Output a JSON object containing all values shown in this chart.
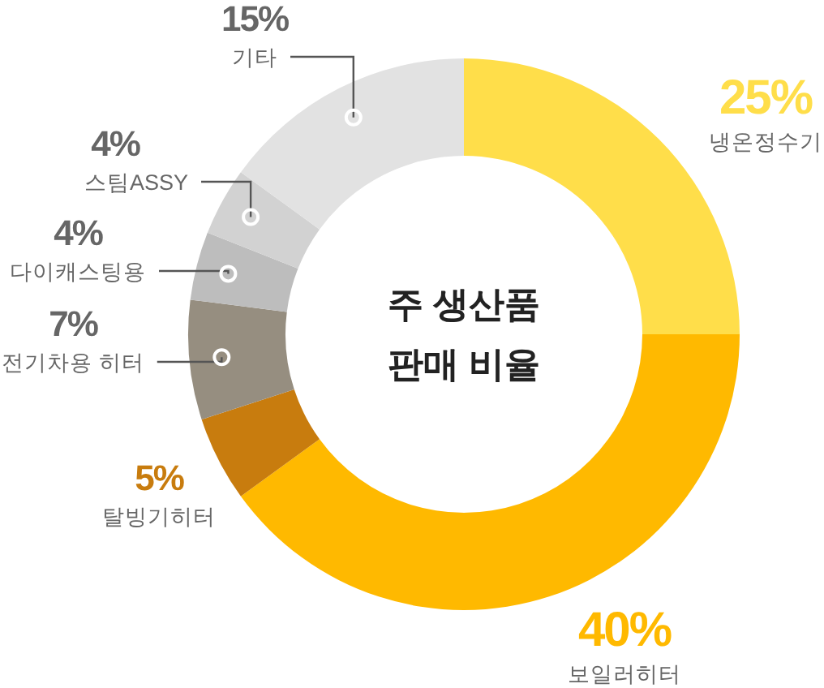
{
  "chart_data": {
    "type": "donut",
    "title": "주 생산품\n판매 비율",
    "categories": [
      "냉온정수기",
      "보일러히터",
      "탈빙기히터",
      "전기차용 히터",
      "다이캐스팅용",
      "스팀ASSY",
      "기타"
    ],
    "values": [
      25,
      40,
      5,
      7,
      4,
      4,
      15
    ],
    "colors": [
      "#ffde4a",
      "#ffb900",
      "#c87c0e",
      "#968e80",
      "#bdbdbd",
      "#d2d2d2",
      "#e2e2e2"
    ],
    "value_labels": [
      "25%",
      "40%",
      "5%",
      "7%",
      "4%",
      "4%",
      "15%"
    ]
  }
}
